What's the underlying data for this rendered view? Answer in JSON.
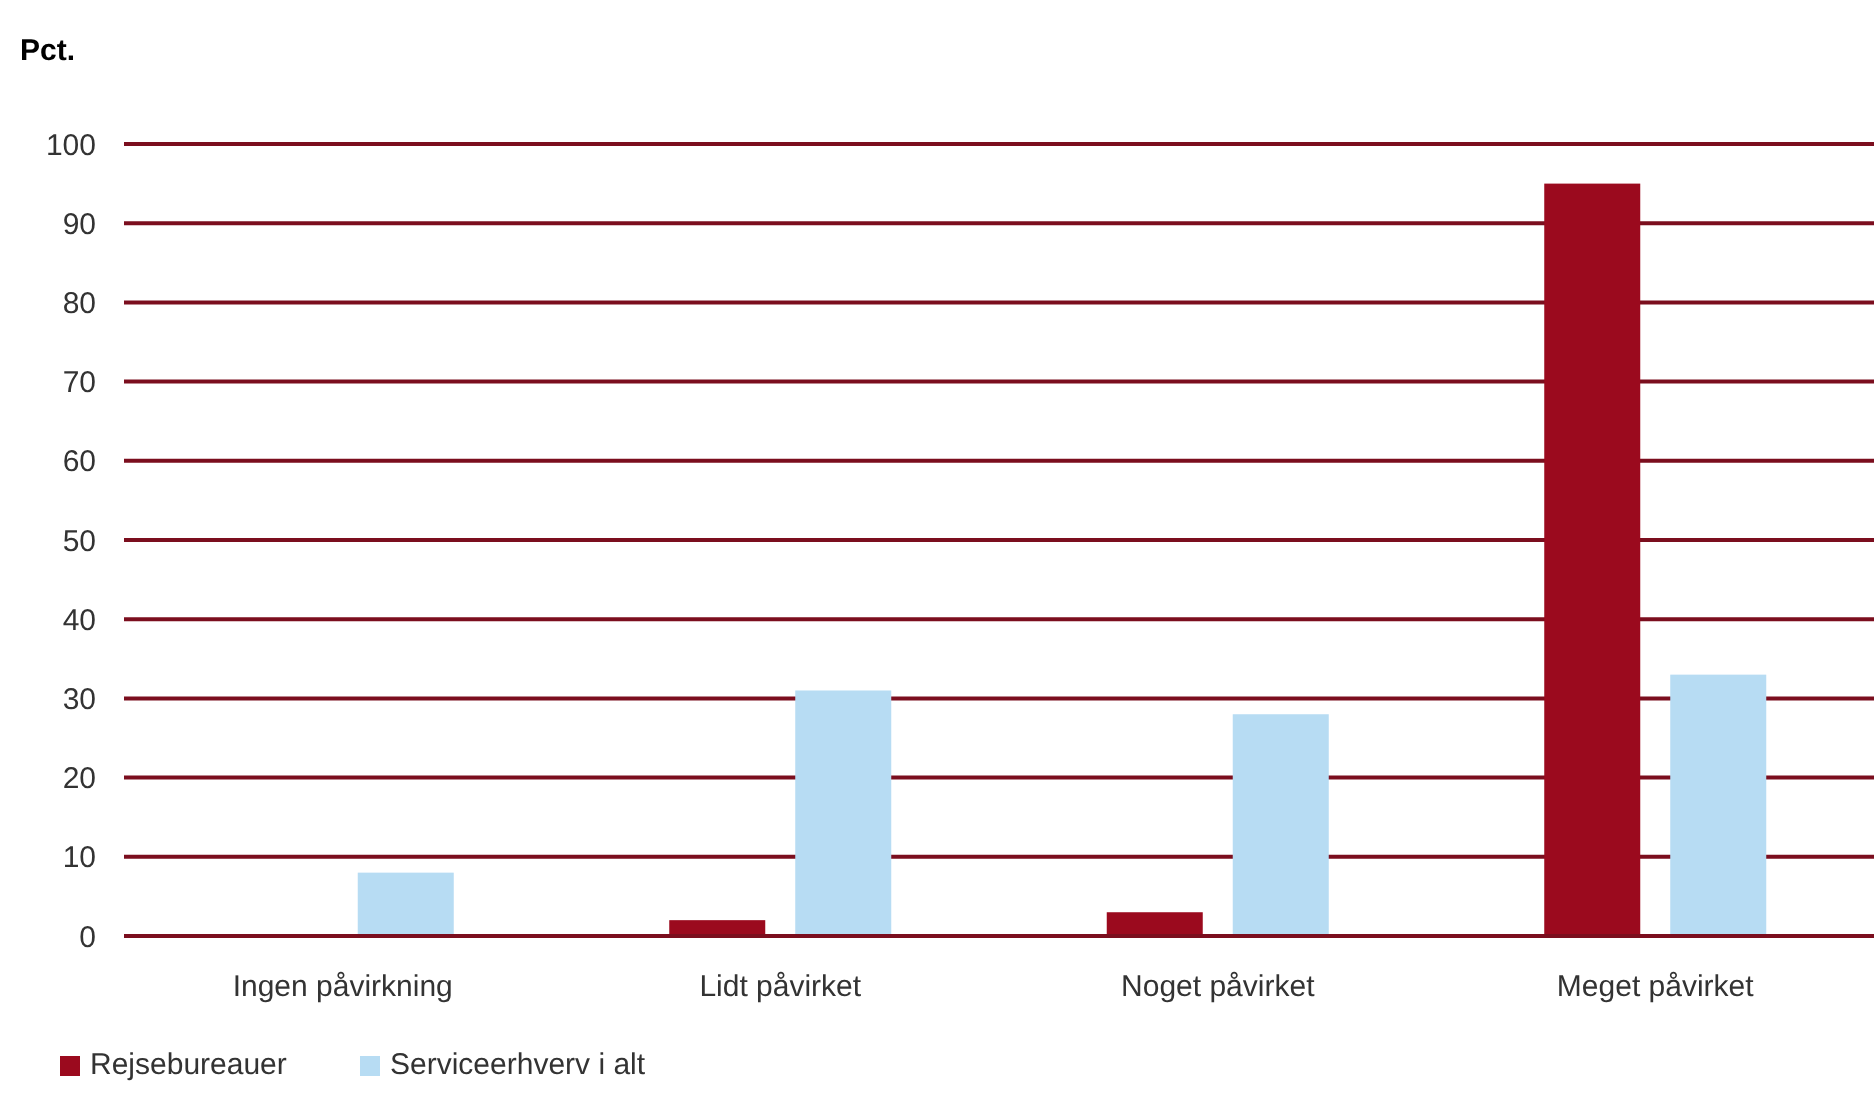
{
  "chart_data": {
    "type": "bar",
    "ylabel": "Pct.",
    "categories": [
      "Ingen påvirkning",
      "Lidt påvirket",
      "Noget påvirket",
      "Meget påvirket"
    ],
    "series": [
      {
        "name": "Rejsebureauer",
        "color": "#9b0a1e",
        "values": [
          0,
          2,
          3,
          95
        ]
      },
      {
        "name": "Serviceerhverv i alt",
        "color": "#b7dcf3",
        "values": [
          8,
          31,
          28,
          33
        ]
      }
    ],
    "ylim": [
      0,
      100
    ],
    "yticks": [
      0,
      10,
      20,
      30,
      40,
      50,
      60,
      70,
      80,
      90,
      100
    ],
    "grid": "y",
    "legend": "bottom"
  }
}
